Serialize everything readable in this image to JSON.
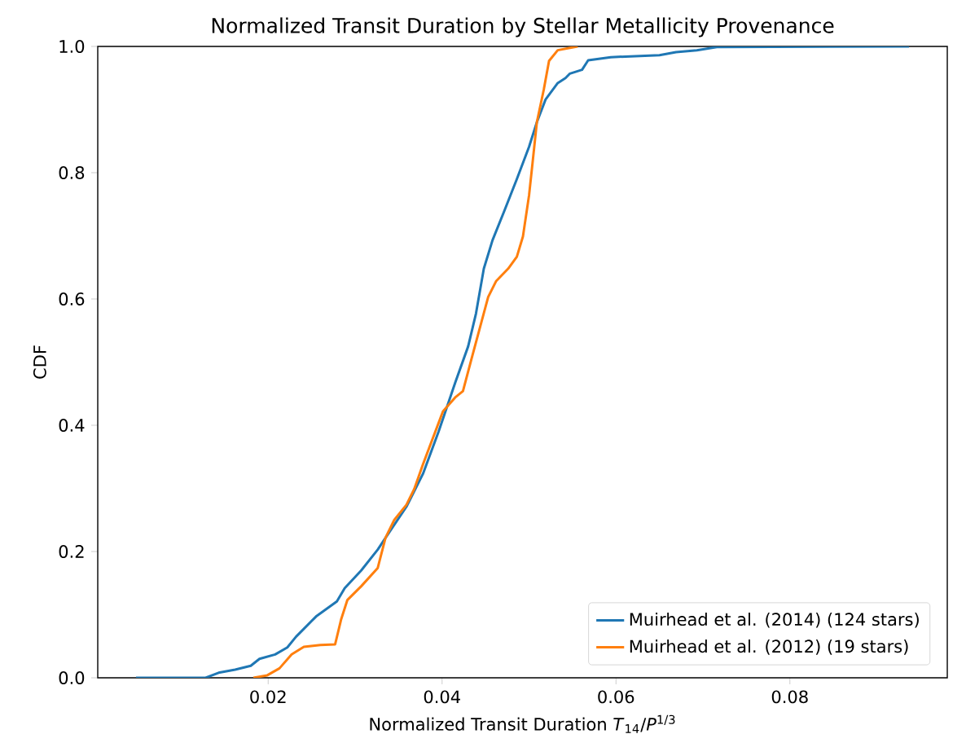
{
  "chart_data": {
    "type": "line",
    "title": "Normalized Transit Duration by Stellar Metallicity Provenance",
    "xlabel": "Normalized Transit Duration *T*$_{14}$/*P*$^{1/3}$",
    "ylabel": "CDF",
    "xlim": [
      0.0004,
      0.0981
    ],
    "ylim": [
      0,
      1
    ],
    "xticks": [
      0.02,
      0.04,
      0.06,
      0.08
    ],
    "yticks": [
      {
        "value": 0,
        "label": "0.0"
      },
      0.2,
      0.4,
      0.6,
      0.8,
      {
        "value": 1,
        "label": "1.0"
      }
    ],
    "legend": "bottom right",
    "series": [
      {
        "name": "Muirhead et al. (2014) (124 stars)",
        "color": "#1f77b4",
        "x": [
          0.0048,
          0.0128,
          0.0143,
          0.0162,
          0.018,
          0.019,
          0.0208,
          0.0222,
          0.0232,
          0.0255,
          0.0279,
          0.0288,
          0.0307,
          0.0326,
          0.034,
          0.0359,
          0.0378,
          0.0396,
          0.0415,
          0.043,
          0.0439,
          0.0448,
          0.0458,
          0.0472,
          0.0486,
          0.05,
          0.0509,
          0.0519,
          0.0533,
          0.0542,
          0.0547,
          0.0561,
          0.0568,
          0.0594,
          0.065,
          0.0669,
          0.0693,
          0.0716,
          0.0937
        ],
        "values": [
          0,
          0,
          0.008,
          0.013,
          0.019,
          0.03,
          0.037,
          0.048,
          0.065,
          0.097,
          0.121,
          0.142,
          0.17,
          0.203,
          0.232,
          0.271,
          0.323,
          0.39,
          0.467,
          0.525,
          0.577,
          0.648,
          0.693,
          0.741,
          0.79,
          0.841,
          0.88,
          0.916,
          0.942,
          0.95,
          0.957,
          0.963,
          0.978,
          0.983,
          0.986,
          0.991,
          0.994,
          0.999,
          1.0
        ]
      },
      {
        "name": "Muirhead et al. (2012) (19 stars)",
        "color": "#ff7f0e",
        "x": [
          0.0183,
          0.0199,
          0.0213,
          0.0227,
          0.0241,
          0.026,
          0.0277,
          0.0284,
          0.0291,
          0.0307,
          0.0326,
          0.0335,
          0.0345,
          0.0359,
          0.0368,
          0.0378,
          0.0401,
          0.0415,
          0.0424,
          0.0434,
          0.0453,
          0.0462,
          0.0476,
          0.0486,
          0.0493,
          0.05,
          0.0504,
          0.0509,
          0.0517,
          0.0523,
          0.0533,
          0.0556
        ],
        "values": [
          0,
          0.004,
          0.015,
          0.037,
          0.049,
          0.052,
          0.053,
          0.093,
          0.123,
          0.145,
          0.174,
          0.222,
          0.25,
          0.274,
          0.299,
          0.338,
          0.422,
          0.444,
          0.454,
          0.506,
          0.603,
          0.628,
          0.648,
          0.667,
          0.699,
          0.764,
          0.815,
          0.88,
          0.932,
          0.977,
          0.994,
          1.0
        ]
      }
    ]
  }
}
